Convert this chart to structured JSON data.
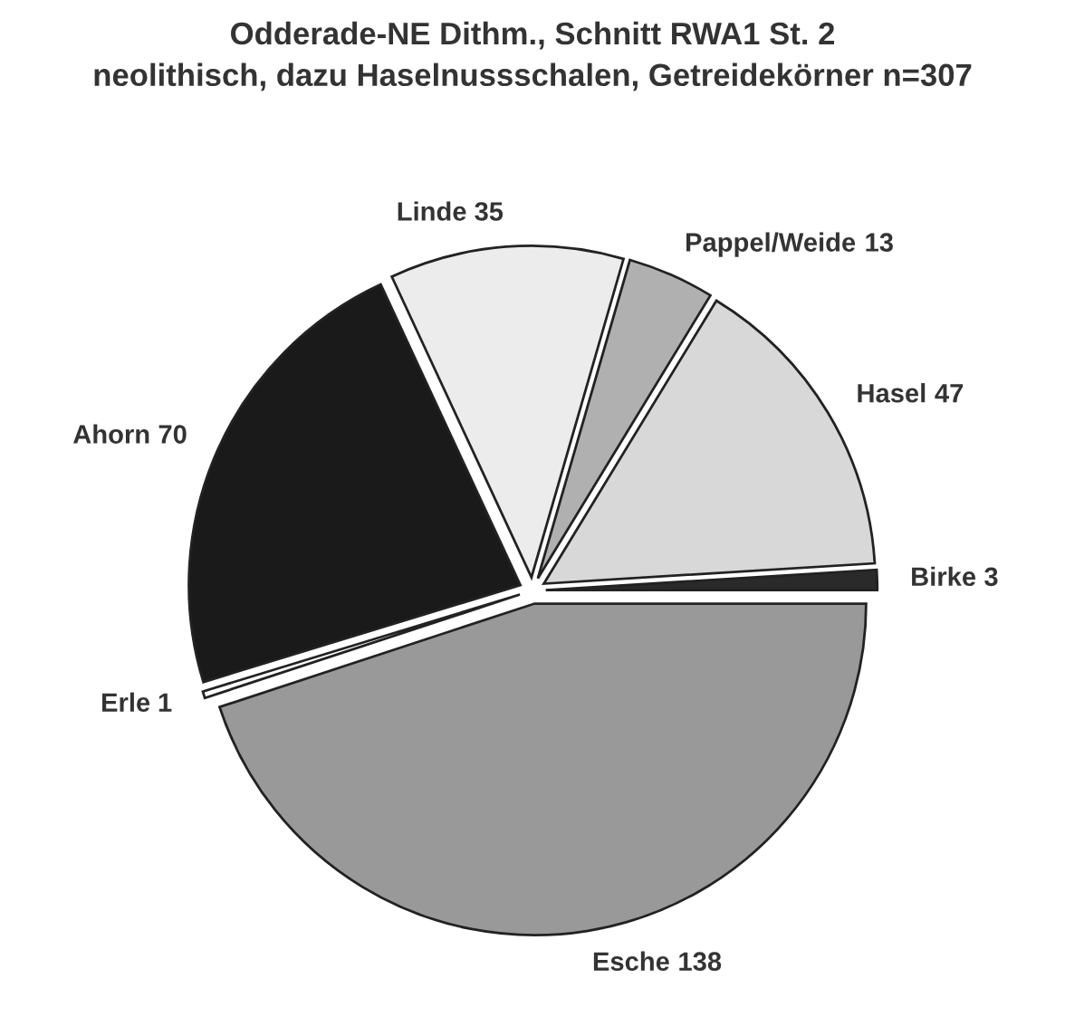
{
  "chart_data": {
    "type": "pie",
    "title": "Odderade-NE Dithm., Schnitt RWA1 St. 2",
    "subtitle": "neolithisch, dazu Haselnussschalen, Getreidekörner n=307",
    "categories": [
      "Birke",
      "Hasel",
      "Pappel/Weide",
      "Linde",
      "Ahorn",
      "Erle",
      "Esche"
    ],
    "values": [
      3,
      47,
      13,
      35,
      70,
      1,
      138
    ],
    "colors": [
      "#2a2a2a",
      "#d8d8d8",
      "#b0b0b0",
      "#ececec",
      "#1a1a1a",
      "#ffffff",
      "#999999"
    ],
    "data_labels": true,
    "legend": false
  }
}
